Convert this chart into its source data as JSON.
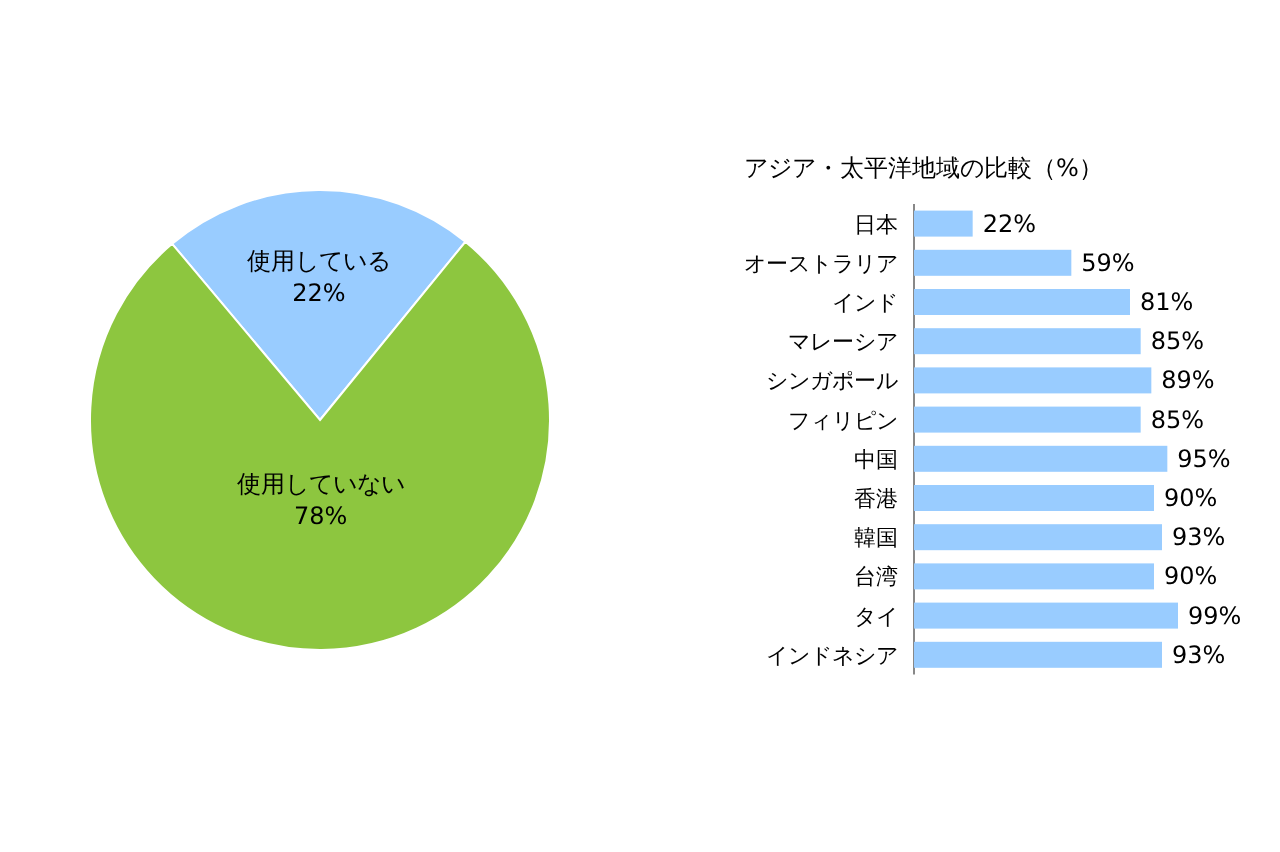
{
  "chart_data": [
    {
      "type": "pie",
      "categories": [
        "使用している",
        "使用していない"
      ],
      "values": [
        22,
        78
      ],
      "colors": [
        "#99ccff",
        "#8dc63f"
      ],
      "value_labels": [
        "22%",
        "78%"
      ]
    },
    {
      "type": "bar",
      "orientation": "horizontal",
      "title": "アジア・太平洋地域の比較（%）",
      "categories": [
        "日本",
        "オーストラリア",
        "インド",
        "マレーシア",
        "シンガポール",
        "フィリピン",
        "中国",
        "香港",
        "韓国",
        "台湾",
        "タイ",
        "インドネシア"
      ],
      "values": [
        22,
        59,
        81,
        85,
        89,
        85,
        95,
        90,
        93,
        90,
        99,
        93
      ],
      "color": "#99ccff",
      "value_labels": [
        "22%",
        "59%",
        "81%",
        "85%",
        "89%",
        "85%",
        "95%",
        "90%",
        "93%",
        "90%",
        "99%",
        "93%"
      ]
    }
  ]
}
